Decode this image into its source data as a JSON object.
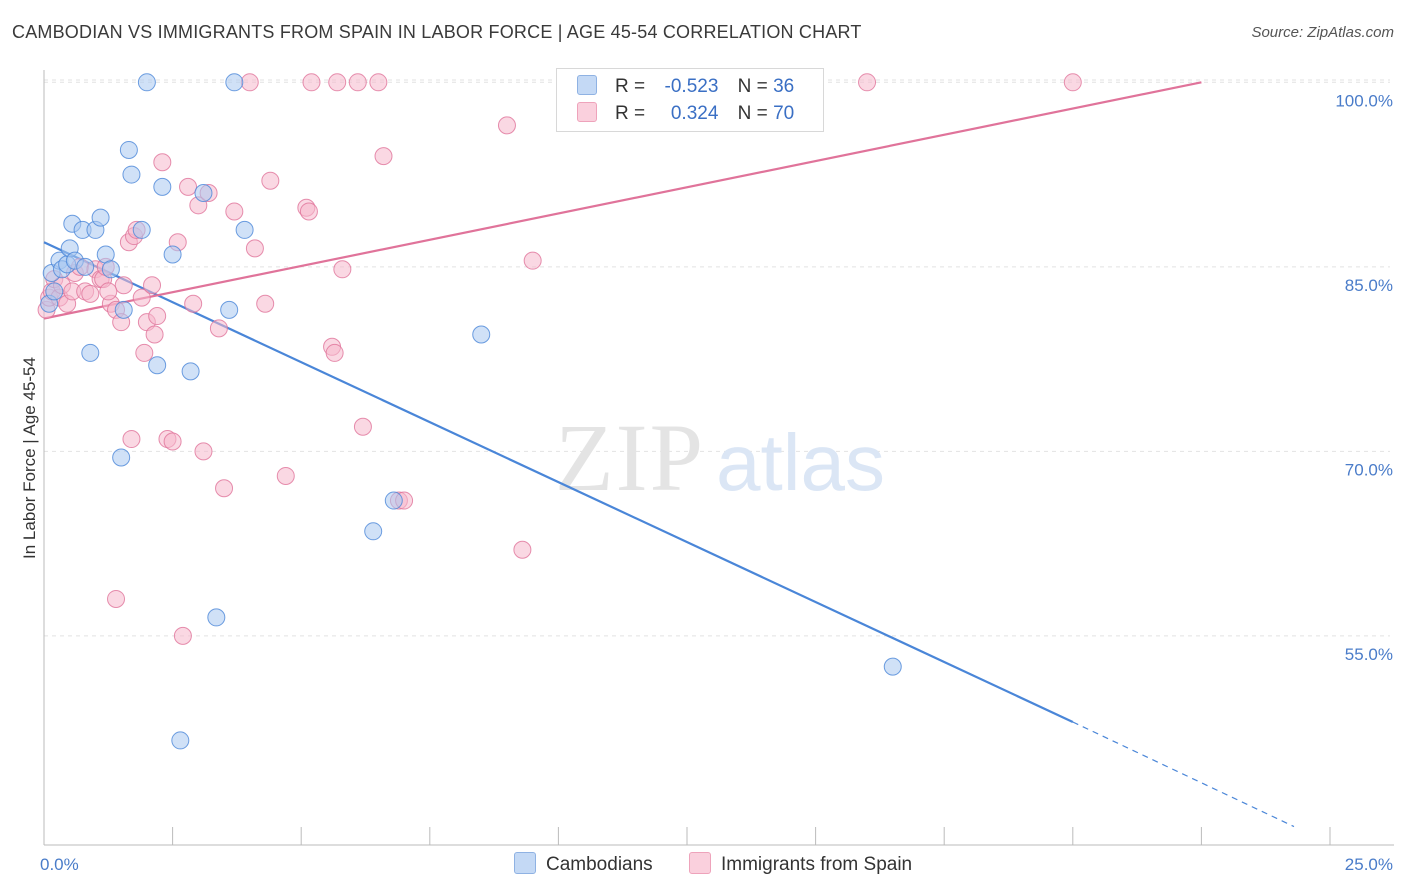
{
  "header": {
    "title": "CAMBODIAN VS IMMIGRANTS FROM SPAIN IN LABOR FORCE | AGE 45-54 CORRELATION CHART",
    "source": "Source: ZipAtlas.com"
  },
  "legend": {
    "rows": [
      {
        "r_label": "R =",
        "r_value": "-0.523",
        "n_label": "N =",
        "n_value": "36",
        "color": "#a9c8f0"
      },
      {
        "r_label": "R =",
        "r_value": "0.324",
        "n_label": "N =",
        "n_value": "70",
        "color": "#f6b8cc"
      }
    ]
  },
  "bottom_legend": {
    "items": [
      {
        "label": "Cambodians",
        "color": "#a9c8f0"
      },
      {
        "label": "Immigrants from Spain",
        "color": "#f6b8cc"
      }
    ]
  },
  "watermark": {
    "zip": "ZIP",
    "atlas": "atlas"
  },
  "chart_data": {
    "type": "scatter",
    "title": "CAMBODIAN VS IMMIGRANTS FROM SPAIN IN LABOR FORCE | AGE 45-54 CORRELATION CHART",
    "xlabel": "",
    "ylabel": "In Labor Force | Age 45-54",
    "xlim": [
      0,
      25
    ],
    "ylim": [
      38,
      101
    ],
    "x_tick_labels": [
      {
        "value": 0,
        "label": "0.0%"
      },
      {
        "value": 25,
        "label": "25.0%"
      }
    ],
    "y_tick_labels": [
      {
        "value": 100,
        "label": "100.0%"
      },
      {
        "value": 85,
        "label": "85.0%"
      },
      {
        "value": 70,
        "label": "70.0%"
      },
      {
        "value": 55,
        "label": "55.0%"
      }
    ],
    "grid": true,
    "legend_position": "top-center",
    "series": [
      {
        "name": "Cambodians",
        "color": "#4a86d8",
        "fill": "#a9c8f0",
        "points": [
          [
            0.1,
            82.0
          ],
          [
            0.15,
            84.5
          ],
          [
            0.3,
            85.5
          ],
          [
            0.35,
            84.8
          ],
          [
            0.45,
            85.2
          ],
          [
            0.5,
            86.5
          ],
          [
            0.55,
            88.5
          ],
          [
            0.6,
            85.5
          ],
          [
            0.75,
            88.0
          ],
          [
            0.8,
            85.0
          ],
          [
            1.0,
            88.0
          ],
          [
            1.1,
            89.0
          ],
          [
            1.2,
            86.0
          ],
          [
            1.3,
            84.8
          ],
          [
            1.5,
            69.5
          ],
          [
            1.55,
            81.5
          ],
          [
            1.65,
            94.5
          ],
          [
            1.7,
            92.5
          ],
          [
            1.9,
            88.0
          ],
          [
            2.0,
            100.0
          ],
          [
            2.2,
            77.0
          ],
          [
            2.3,
            91.5
          ],
          [
            2.5,
            86.0
          ],
          [
            2.65,
            46.5
          ],
          [
            2.85,
            76.5
          ],
          [
            3.1,
            91.0
          ],
          [
            3.35,
            56.5
          ],
          [
            3.6,
            81.5
          ],
          [
            3.7,
            100.0
          ],
          [
            3.9,
            88.0
          ],
          [
            0.9,
            78.0
          ],
          [
            6.4,
            63.5
          ],
          [
            6.8,
            66.0
          ],
          [
            8.5,
            79.5
          ],
          [
            16.5,
            52.5
          ],
          [
            0.2,
            83.0
          ]
        ],
        "trend": {
          "x0": 0,
          "y0": 87.0,
          "x1": 20.0,
          "y1": 48.0,
          "dash_x1": 24.3,
          "dash_y1": 39.5
        }
      },
      {
        "name": "Immigrants from Spain",
        "color": "#e0739a",
        "fill": "#f6b8cc",
        "points": [
          [
            0.05,
            81.5
          ],
          [
            0.1,
            82.5
          ],
          [
            0.15,
            83.0
          ],
          [
            0.2,
            84.0
          ],
          [
            0.3,
            82.5
          ],
          [
            0.35,
            83.5
          ],
          [
            0.45,
            82.0
          ],
          [
            0.55,
            83.0
          ],
          [
            0.6,
            84.5
          ],
          [
            0.7,
            85.0
          ],
          [
            0.8,
            83.0
          ],
          [
            0.9,
            82.8
          ],
          [
            1.0,
            84.8
          ],
          [
            1.1,
            84.0
          ],
          [
            1.15,
            84.0
          ],
          [
            1.2,
            85.0
          ],
          [
            1.3,
            82.0
          ],
          [
            1.4,
            81.5
          ],
          [
            1.5,
            80.5
          ],
          [
            1.55,
            83.5
          ],
          [
            1.65,
            87.0
          ],
          [
            1.7,
            71.0
          ],
          [
            1.75,
            87.5
          ],
          [
            1.8,
            88.0
          ],
          [
            1.9,
            82.5
          ],
          [
            1.95,
            78.0
          ],
          [
            2.0,
            80.5
          ],
          [
            2.1,
            83.5
          ],
          [
            2.15,
            79.5
          ],
          [
            2.2,
            81.0
          ],
          [
            2.3,
            93.5
          ],
          [
            2.4,
            71.0
          ],
          [
            2.5,
            70.8
          ],
          [
            2.7,
            55.0
          ],
          [
            2.8,
            91.5
          ],
          [
            2.9,
            82.0
          ],
          [
            3.0,
            90.0
          ],
          [
            3.1,
            70.0
          ],
          [
            3.2,
            91.0
          ],
          [
            3.4,
            80.0
          ],
          [
            3.5,
            67.0
          ],
          [
            3.7,
            89.5
          ],
          [
            4.0,
            100.0
          ],
          [
            4.1,
            86.5
          ],
          [
            4.3,
            82.0
          ],
          [
            4.4,
            92.0
          ],
          [
            4.7,
            68.0
          ],
          [
            5.1,
            89.8
          ],
          [
            5.15,
            89.5
          ],
          [
            5.2,
            100.0
          ],
          [
            5.6,
            78.5
          ],
          [
            5.65,
            78.0
          ],
          [
            5.7,
            100.0
          ],
          [
            5.8,
            84.8
          ],
          [
            6.1,
            100.0
          ],
          [
            6.2,
            72.0
          ],
          [
            6.5,
            100.0
          ],
          [
            6.6,
            94.0
          ],
          [
            6.9,
            66.0
          ],
          [
            7.0,
            66.0
          ],
          [
            9.0,
            96.5
          ],
          [
            9.3,
            62.0
          ],
          [
            9.5,
            85.5
          ],
          [
            10.5,
            100.0
          ],
          [
            12.7,
            100.0
          ],
          [
            16.0,
            100.0
          ],
          [
            20.0,
            100.0
          ],
          [
            1.4,
            58.0
          ],
          [
            2.6,
            87.0
          ],
          [
            1.25,
            83.0
          ]
        ],
        "trend": {
          "x0": 0,
          "y0": 80.8,
          "x1": 22.5,
          "y1": 100.0
        }
      }
    ]
  }
}
